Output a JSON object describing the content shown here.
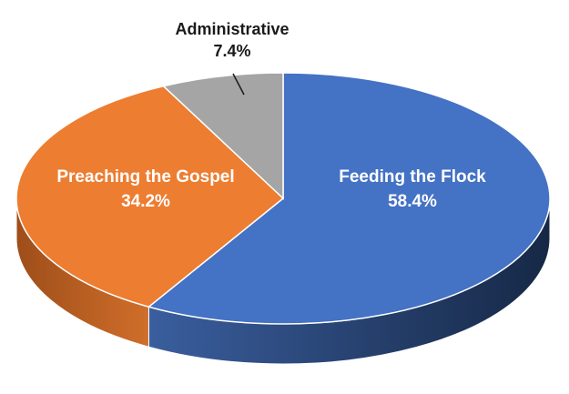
{
  "chart_data": {
    "type": "pie",
    "title": "",
    "slices": [
      {
        "label": "Feeding the Flock",
        "value": 58.4,
        "value_label": "58.4%",
        "color": "#4472C4",
        "side_color": "#1F3A68",
        "text_color": "#ffffff"
      },
      {
        "label": "Preaching the Gospel",
        "value": 34.2,
        "value_label": "34.2%",
        "color": "#ED7D31",
        "side_color": "#B35A1F",
        "text_color": "#ffffff"
      },
      {
        "label": "Administrative",
        "value": 7.4,
        "value_label": "7.4%",
        "color": "#A5A5A5",
        "side_color": "#6E6E6E",
        "text_color": "#1a1a1a"
      }
    ],
    "style": "3d",
    "start_angle_deg": -90,
    "direction": "clockwise"
  }
}
